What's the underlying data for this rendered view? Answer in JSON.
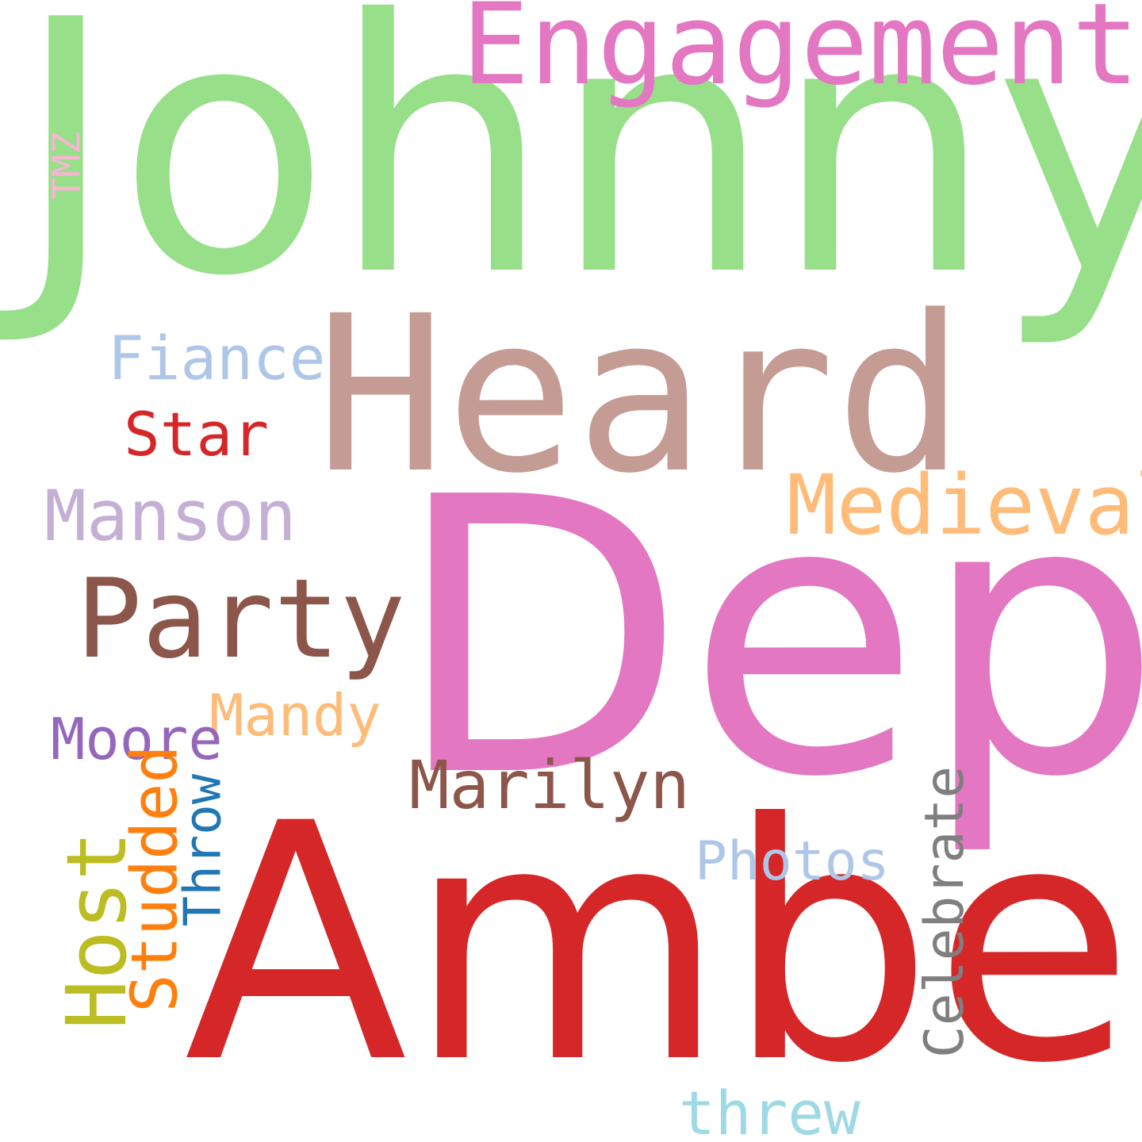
{
  "words": [
    {
      "key": "johnny",
      "text": "Johnny",
      "color": "#98df8a"
    },
    {
      "key": "engagement",
      "text": "Engagement",
      "color": "#e377c2"
    },
    {
      "key": "heard",
      "text": "Heard",
      "color": "#c49c94"
    },
    {
      "key": "depp",
      "text": "Depp",
      "color": "#e377c2"
    },
    {
      "key": "amber",
      "text": "Amber",
      "color": "#d62728"
    },
    {
      "key": "tmz",
      "text": "TMZ",
      "color": "#f7b6d2"
    },
    {
      "key": "fiance",
      "text": "Fiance",
      "color": "#aec7e8"
    },
    {
      "key": "star",
      "text": "Star",
      "color": "#d62728"
    },
    {
      "key": "manson",
      "text": "Manson",
      "color": "#c5b0d5"
    },
    {
      "key": "medieval",
      "text": "Medieval",
      "color": "#ffbb78"
    },
    {
      "key": "party",
      "text": "Party",
      "color": "#8c564b"
    },
    {
      "key": "mandy",
      "text": "Mandy",
      "color": "#ffbb78"
    },
    {
      "key": "moore",
      "text": "Moore",
      "color": "#9467bd"
    },
    {
      "key": "marilyn",
      "text": "Marilyn",
      "color": "#8c564b"
    },
    {
      "key": "host",
      "text": "Host",
      "color": "#bcbd22"
    },
    {
      "key": "studded",
      "text": "Studded",
      "color": "#ff7f0e"
    },
    {
      "key": "throw",
      "text": "Throw",
      "color": "#1f77b4"
    },
    {
      "key": "photos",
      "text": "Photos",
      "color": "#aec7e8"
    },
    {
      "key": "celebrate",
      "text": "Celebrate",
      "color": "#7f7f7f"
    },
    {
      "key": "threw",
      "text": "threw",
      "color": "#9edae5"
    }
  ]
}
